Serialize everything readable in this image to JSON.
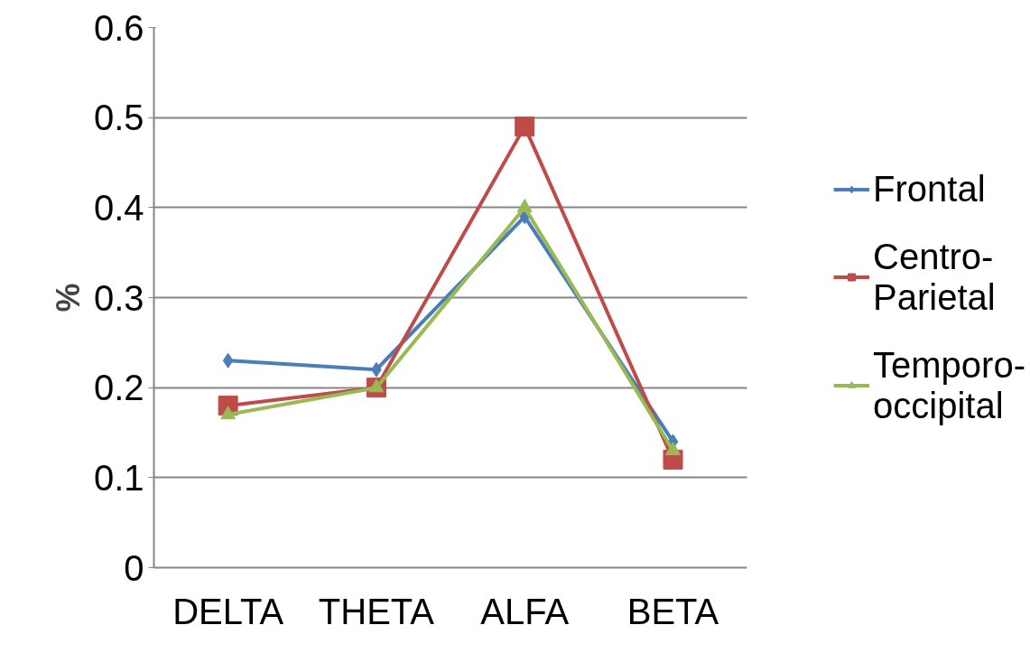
{
  "chart_data": {
    "type": "line",
    "ylabel": "%",
    "categories": [
      "DELTA",
      "THETA",
      "ALFA",
      "BETA"
    ],
    "series": [
      {
        "name": "Frontal",
        "color": "#4a7ebb",
        "marker": "diamond",
        "values": [
          0.23,
          0.22,
          0.39,
          0.14
        ]
      },
      {
        "name": "Centro-Parietal",
        "color": "#be4b48",
        "marker": "square",
        "values": [
          0.18,
          0.2,
          0.49,
          0.12
        ]
      },
      {
        "name": "Temporo-occipital",
        "color": "#98b954",
        "marker": "triangle",
        "values": [
          0.17,
          0.2,
          0.4,
          0.13
        ]
      }
    ],
    "ylim": [
      0,
      0.6
    ],
    "yticks": [
      0,
      0.1,
      0.2,
      0.3,
      0.4,
      0.5,
      0.6
    ],
    "grid": "y",
    "legend": "right"
  }
}
